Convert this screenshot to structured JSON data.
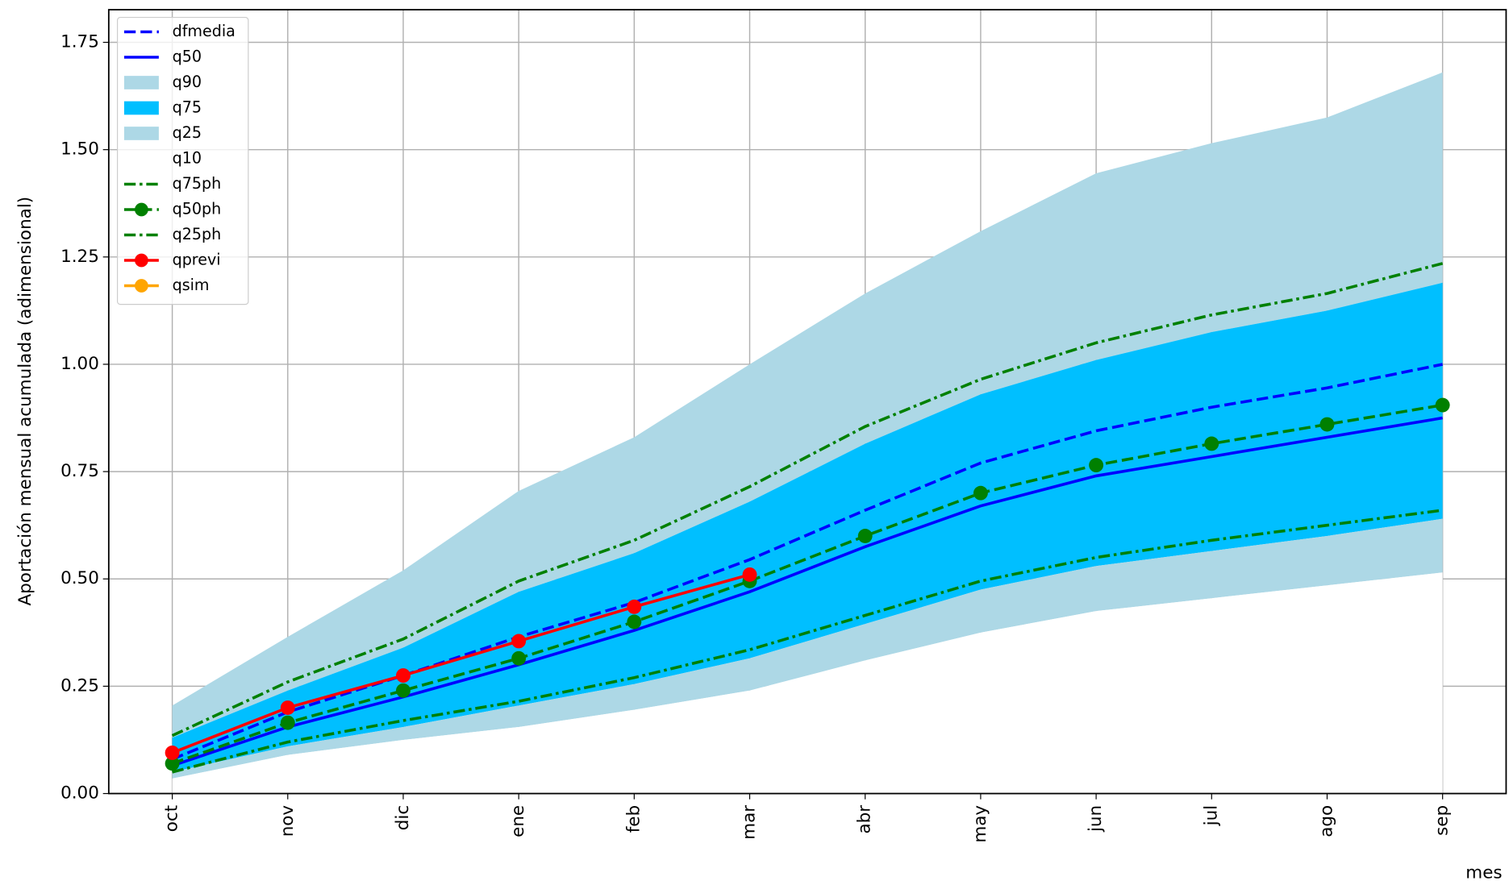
{
  "chart_data": {
    "type": "line",
    "xlabel": "mes",
    "ylabel": "Aportación mensual acumulada (adimensional)",
    "categories": [
      "oct",
      "nov",
      "dic",
      "ene",
      "feb",
      "mar",
      "abr",
      "may",
      "jun",
      "jul",
      "ago",
      "sep"
    ],
    "ylim": [
      0,
      1.826
    ],
    "yticks": [
      {
        "value": 0,
        "label": "0.00"
      },
      0.25,
      {
        "value": 0.5,
        "label": "0.50"
      },
      0.75,
      {
        "value": 1,
        "label": "1.00"
      },
      1.25,
      {
        "value": 1.5,
        "label": "1.50"
      },
      1.75
    ],
    "grid": true,
    "legend": "upper left",
    "series": [
      {
        "name": "dfmedia",
        "color": "#0000ff",
        "linestyle": "dashed",
        "values": [
          0.08,
          0.19,
          0.275,
          0.365,
          0.445,
          0.545,
          0.66,
          0.77,
          0.845,
          0.9,
          0.945,
          1.0
        ]
      },
      {
        "name": "q50",
        "color": "#0000ff",
        "linestyle": "solid",
        "values": [
          0.065,
          0.155,
          0.225,
          0.3,
          0.38,
          0.47,
          0.575,
          0.67,
          0.74,
          0.785,
          0.83,
          0.875
        ]
      },
      {
        "name": "q90",
        "color": "#add8e6",
        "kind": "area",
        "values": [
          0.205,
          0.365,
          0.52,
          0.705,
          0.83,
          1.0,
          1.165,
          1.31,
          1.445,
          1.515,
          1.575,
          1.68
        ]
      },
      {
        "name": "q75",
        "color": "#00bfff",
        "kind": "area",
        "values": [
          0.13,
          0.24,
          0.34,
          0.47,
          0.56,
          0.68,
          0.815,
          0.93,
          1.01,
          1.075,
          1.125,
          1.19
        ]
      },
      {
        "name": "q25",
        "color": "#add8e6",
        "kind": "area",
        "values": [
          0.05,
          0.11,
          0.155,
          0.205,
          0.255,
          0.315,
          0.395,
          0.475,
          0.53,
          0.565,
          0.6,
          0.64
        ]
      },
      {
        "name": "q10",
        "color": "#ffffff",
        "kind": "area",
        "values": [
          0.035,
          0.09,
          0.125,
          0.155,
          0.195,
          0.24,
          0.31,
          0.375,
          0.425,
          0.455,
          0.485,
          0.515
        ]
      },
      {
        "name": "q75ph",
        "color": "#008000",
        "linestyle": "dashdot",
        "values": [
          0.135,
          0.26,
          0.36,
          0.495,
          0.59,
          0.715,
          0.855,
          0.965,
          1.05,
          1.115,
          1.165,
          1.235
        ]
      },
      {
        "name": "q50ph",
        "color": "#008000",
        "linestyle": "dashed",
        "marker": "o",
        "values": [
          0.07,
          0.165,
          0.24,
          0.315,
          0.4,
          0.495,
          0.6,
          0.7,
          0.765,
          0.815,
          0.86,
          0.905
        ]
      },
      {
        "name": "q25ph",
        "color": "#008000",
        "linestyle": "dashdot",
        "values": [
          0.05,
          0.12,
          0.17,
          0.215,
          0.27,
          0.335,
          0.415,
          0.495,
          0.55,
          0.59,
          0.625,
          0.66
        ]
      },
      {
        "name": "qprevi",
        "color": "#ff0000",
        "linestyle": "solid",
        "marker": "o",
        "values": [
          0.095,
          0.2,
          0.275,
          0.355,
          0.435,
          0.51,
          null,
          null,
          null,
          null,
          null,
          null
        ]
      },
      {
        "name": "qsim",
        "color": "#ffa500",
        "linestyle": "solid",
        "marker": "o",
        "values": [
          null,
          null,
          null,
          null,
          null,
          null,
          null,
          null,
          null,
          null,
          null,
          null
        ]
      }
    ]
  }
}
